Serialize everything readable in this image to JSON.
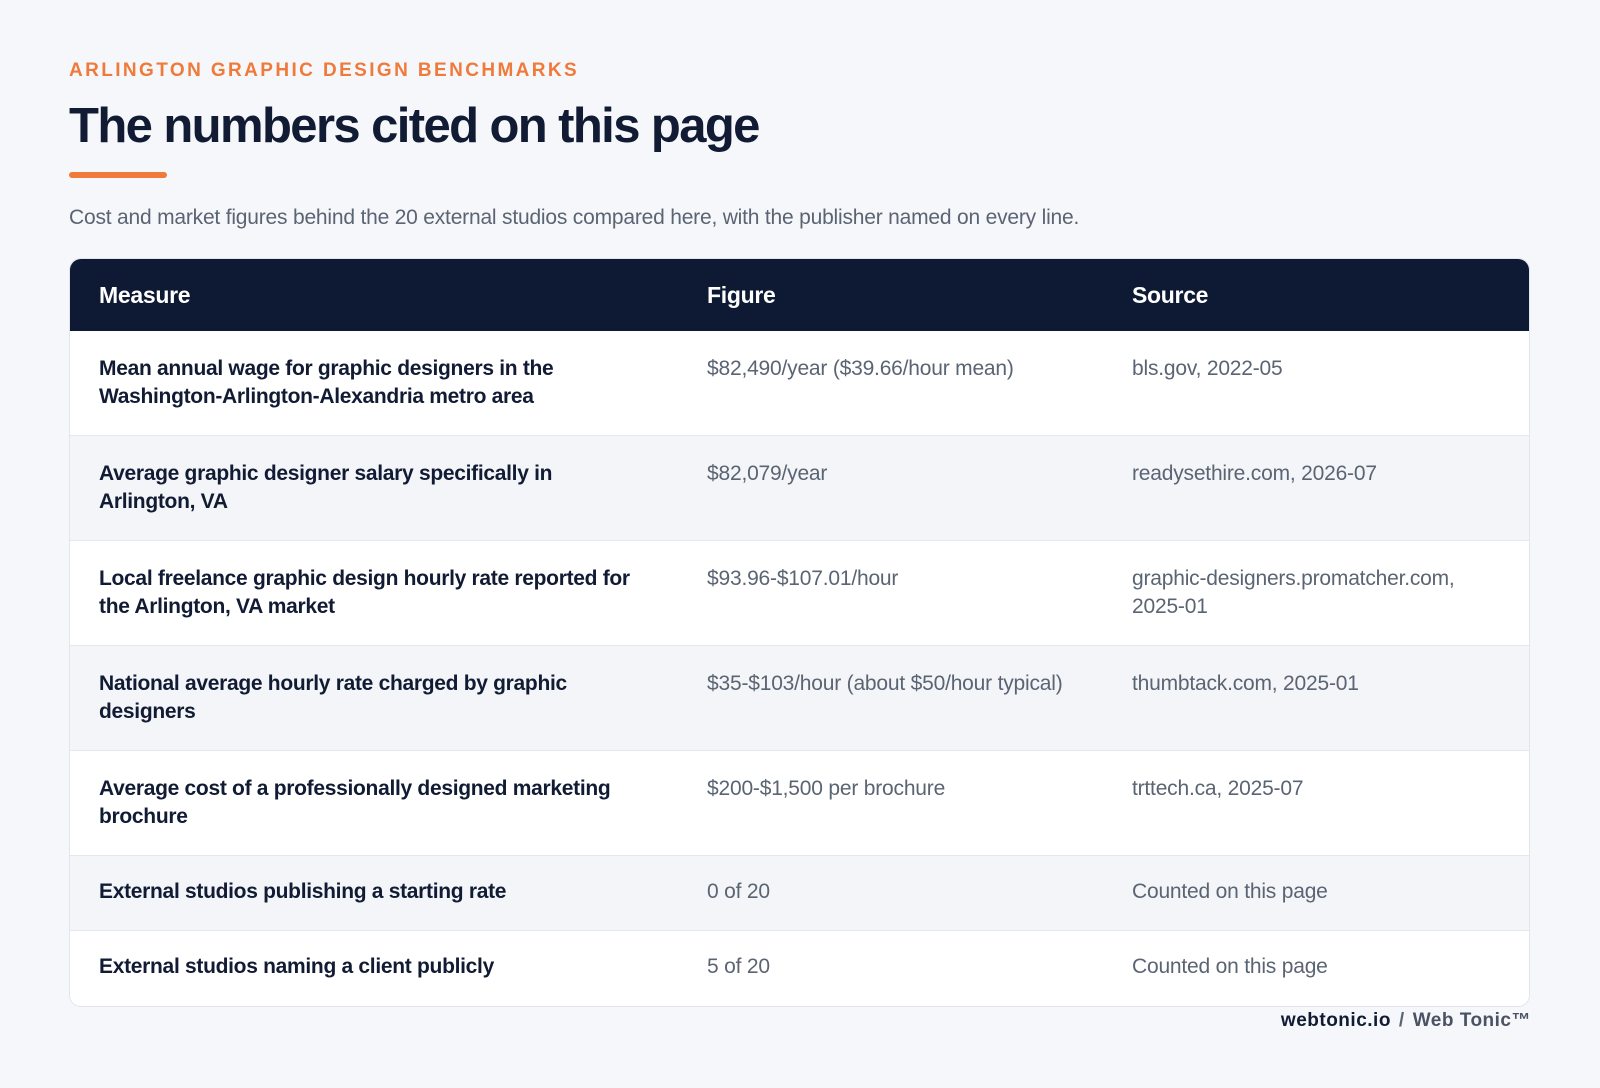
{
  "header": {
    "eyebrow": "ARLINGTON GRAPHIC DESIGN BENCHMARKS",
    "title": "The numbers cited on this page",
    "subtitle": "Cost and market figures behind the 20 external studios compared here, with the publisher named on every line."
  },
  "table": {
    "columns": [
      "Measure",
      "Figure",
      "Source"
    ],
    "rows": [
      {
        "measure": "Mean annual wage for graphic designers in the Washington-Arlington-Alexandria metro area",
        "figure": "$82,490/year ($39.66/hour mean)",
        "source": "bls.gov, 2022-05"
      },
      {
        "measure": "Average graphic designer salary specifically in Arlington, VA",
        "figure": "$82,079/year",
        "source": "readysethire.com, 2026-07"
      },
      {
        "measure": "Local freelance graphic design hourly rate reported for the Arlington, VA market",
        "figure": "$93.96-$107.01/hour",
        "source": "graphic-designers.promatcher.com, 2025-01"
      },
      {
        "measure": "National average hourly rate charged by graphic designers",
        "figure": "$35-$103/hour (about $50/hour typical)",
        "source": "thumbtack.com, 2025-01"
      },
      {
        "measure": "Average cost of a professionally designed marketing brochure",
        "figure": "$200-$1,500 per brochure",
        "source": "trttech.ca, 2025-07"
      },
      {
        "measure": "External studios publishing a starting rate",
        "figure": "0 of 20",
        "source": "Counted on this page"
      },
      {
        "measure": "External studios naming a client publicly",
        "figure": "5 of 20",
        "source": "Counted on this page"
      }
    ]
  },
  "footer": {
    "site": "webtonic.io",
    "separator": "/",
    "brand": "Web Tonic™"
  },
  "colors": {
    "accent": "#ef7a3a",
    "header_bg": "#0e1a33",
    "page_bg": "#f5f7fa"
  }
}
